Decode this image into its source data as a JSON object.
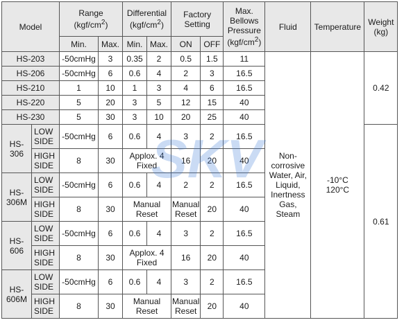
{
  "headers": {
    "model": "Model",
    "range": "Range",
    "differential": "Differential",
    "kgf": "(kgf/cm",
    "sup": "2",
    "close": ")",
    "factory1": "Factory",
    "factory2": "Setting",
    "maxb1": "Max.",
    "maxb2": "Bellows",
    "maxb3": "Pressure",
    "fluid": "Fluid",
    "temperature": "Temperature",
    "weight1": "Weight",
    "weight2": "(kg)",
    "min": "Min.",
    "max": "Max.",
    "on": "ON",
    "off": "OFF"
  },
  "simple_rows": [
    {
      "model": "HS-203",
      "rmin": "-50cmHg",
      "rmax": "3",
      "dmin": "0.35",
      "dmax": "2",
      "on": "0.5",
      "off": "1.5",
      "mbp": "11"
    },
    {
      "model": "HS-206",
      "rmin": "-50cmHg",
      "rmax": "6",
      "dmin": "0.6",
      "dmax": "4",
      "on": "2",
      "off": "3",
      "mbp": "16.5"
    },
    {
      "model": "HS-210",
      "rmin": "1",
      "rmax": "10",
      "dmin": "1",
      "dmax": "3",
      "on": "4",
      "off": "6",
      "mbp": "16.5"
    },
    {
      "model": "HS-220",
      "rmin": "5",
      "rmax": "20",
      "dmin": "3",
      "dmax": "5",
      "on": "12",
      "off": "15",
      "mbp": "40"
    },
    {
      "model": "HS-230",
      "rmin": "5",
      "rmax": "30",
      "dmin": "3",
      "dmax": "10",
      "on": "20",
      "off": "25",
      "mbp": "40"
    }
  ],
  "side_labels": {
    "low1": "LOW",
    "low2": "SIDE",
    "high1": "HIGH",
    "high2": "SIDE"
  },
  "models2": [
    {
      "m1": "HS-",
      "m2": "306"
    },
    {
      "m1": "HS-",
      "m2": "306M"
    },
    {
      "m1": "HS-",
      "m2": "606"
    },
    {
      "m1": "HS-",
      "m2": "606M"
    }
  ],
  "low_rows": [
    {
      "rmin": "-50cmHg",
      "rmax": "6",
      "dmin": "0.6",
      "dmax": "4",
      "on": "3",
      "off": "2",
      "mbp": "16.5"
    },
    {
      "rmin": "-50cmHg",
      "rmax": "6",
      "dmin": "0.6",
      "dmax": "4",
      "on": "2",
      "off": "2",
      "mbp": "16.5"
    },
    {
      "rmin": "-50cmHg",
      "rmax": "6",
      "dmin": "0.6",
      "dmax": "4",
      "on": "3",
      "off": "2",
      "mbp": "16.5"
    },
    {
      "rmin": "-50cmHg",
      "rmax": "6",
      "dmin": "0.6",
      "dmax": "4",
      "on": "3",
      "off": "2",
      "mbp": "16.5"
    }
  ],
  "high_rows": [
    {
      "rmin": "8",
      "rmax": "30",
      "diff1": "Applox. 4",
      "diff2": "Fixed",
      "on": "16",
      "off": "20",
      "mbp": "40"
    },
    {
      "rmin": "8",
      "rmax": "30",
      "diff1": "Manual",
      "diff2": "Reset",
      "on1": "Manual",
      "on2": "Reset",
      "off": "20",
      "mbp": "40"
    },
    {
      "rmin": "8",
      "rmax": "30",
      "diff1": "Applox. 4",
      "diff2": "Fixed",
      "on": "16",
      "off": "20",
      "mbp": "40"
    },
    {
      "rmin": "8",
      "rmax": "30",
      "diff1": "Manual",
      "diff2": "Reset",
      "on1": "Manual",
      "on2": "Reset",
      "off": "20",
      "mbp": "40"
    }
  ],
  "fluid": [
    "Non-",
    "corrosive",
    "Water, Air,",
    "Liquid,",
    "Inertness",
    "Gas,",
    "Steam"
  ],
  "temperature": [
    "-10°C",
    "120°C"
  ],
  "weights": [
    "0.42",
    "0.61"
  ],
  "watermark": "SKV",
  "colors": {
    "header_bg": "#e8e8e8",
    "border": "#555555",
    "watermark": "#3f7fd6"
  }
}
